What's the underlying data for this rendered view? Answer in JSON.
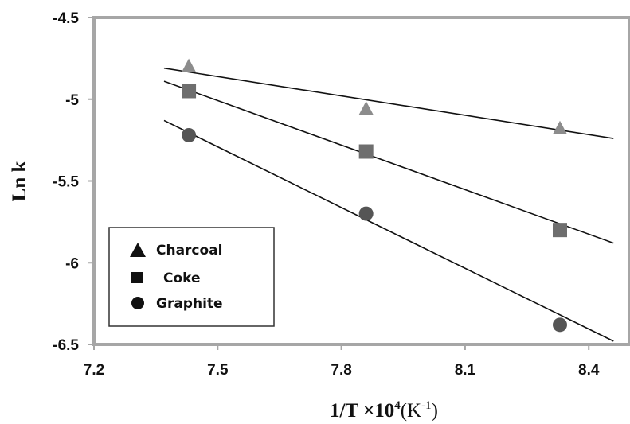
{
  "chart_data": {
    "type": "scatter",
    "xlabel": "1/T ×10",
    "xlabel_sup": "4",
    "xlabel_unit_pre": "(K",
    "xlabel_unit_sup": "-1",
    "xlabel_unit_post": ")",
    "ylabel": "Ln k",
    "xlim": [
      7.2,
      8.5
    ],
    "ylim": [
      -6.5,
      -4.5
    ],
    "xticks": [
      7.2,
      7.5,
      7.8,
      8.1,
      8.4
    ],
    "xtick_labels": [
      "7.2",
      "7.5",
      "7.8",
      "8.1",
      "8.4"
    ],
    "yticks": [
      -4.5,
      -5,
      -5.5,
      -6,
      -6.5
    ],
    "ytick_labels": [
      "-4.5",
      "-5",
      "-5.5",
      "-6",
      "-6.5"
    ],
    "legend_position": "bottom-left",
    "series": [
      {
        "name": "Charcoal",
        "marker": "triangle",
        "color": "#8c8c8c",
        "x": [
          7.43,
          7.86,
          8.33
        ],
        "y": [
          -4.8,
          -5.06,
          -5.18
        ],
        "fit_line": {
          "x": [
            7.37,
            8.46
          ],
          "y": [
            -4.81,
            -5.24
          ]
        }
      },
      {
        "name": "Coke",
        "marker": "square",
        "color": "#6e6e6e",
        "x": [
          7.43,
          7.86,
          8.33
        ],
        "y": [
          -4.95,
          -5.32,
          -5.8
        ],
        "fit_line": {
          "x": [
            7.37,
            8.46
          ],
          "y": [
            -4.89,
            -5.88
          ]
        }
      },
      {
        "name": "Graphite",
        "marker": "circle",
        "color": "#555555",
        "x": [
          7.43,
          7.86,
          8.33
        ],
        "y": [
          -5.22,
          -5.7,
          -6.38
        ],
        "fit_line": {
          "x": [
            7.37,
            8.46
          ],
          "y": [
            -5.13,
            -6.48
          ]
        }
      }
    ]
  }
}
